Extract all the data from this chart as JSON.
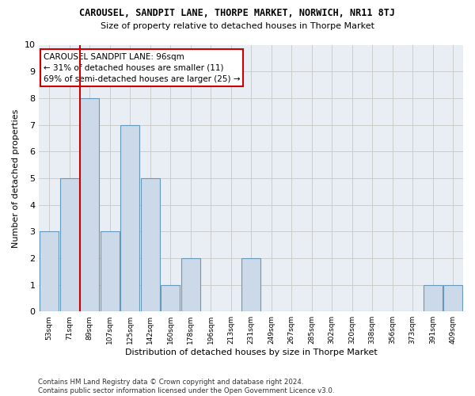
{
  "title": "CAROUSEL, SANDPIT LANE, THORPE MARKET, NORWICH, NR11 8TJ",
  "subtitle": "Size of property relative to detached houses in Thorpe Market",
  "xlabel": "Distribution of detached houses by size in Thorpe Market",
  "ylabel": "Number of detached properties",
  "footer_line1": "Contains HM Land Registry data © Crown copyright and database right 2024.",
  "footer_line2": "Contains public sector information licensed under the Open Government Licence v3.0.",
  "annotation_title": "CAROUSEL SANDPIT LANE: 96sqm",
  "annotation_line2": "← 31% of detached houses are smaller (11)",
  "annotation_line3": "69% of semi-detached houses are larger (25) →",
  "bar_labels": [
    "53sqm",
    "71sqm",
    "89sqm",
    "107sqm",
    "125sqm",
    "142sqm",
    "160sqm",
    "178sqm",
    "196sqm",
    "213sqm",
    "231sqm",
    "249sqm",
    "267sqm",
    "285sqm",
    "302sqm",
    "320sqm",
    "338sqm",
    "356sqm",
    "373sqm",
    "391sqm",
    "409sqm"
  ],
  "bar_values": [
    3,
    5,
    8,
    3,
    7,
    5,
    1,
    2,
    0,
    0,
    2,
    0,
    0,
    0,
    0,
    0,
    0,
    0,
    0,
    1,
    1
  ],
  "bar_color": "#ccd9e8",
  "bar_edge_color": "#6699bb",
  "highlight_bar_index": 2,
  "highlight_line_color": "#cc0000",
  "ylim": [
    0,
    10
  ],
  "yticks": [
    0,
    1,
    2,
    3,
    4,
    5,
    6,
    7,
    8,
    9,
    10
  ],
  "grid_color": "#cccccc",
  "bg_color": "#ffffff",
  "plot_bg_color": "#e8eef4",
  "annotation_box_color": "#ffffff",
  "annotation_box_edge": "#cc0000"
}
